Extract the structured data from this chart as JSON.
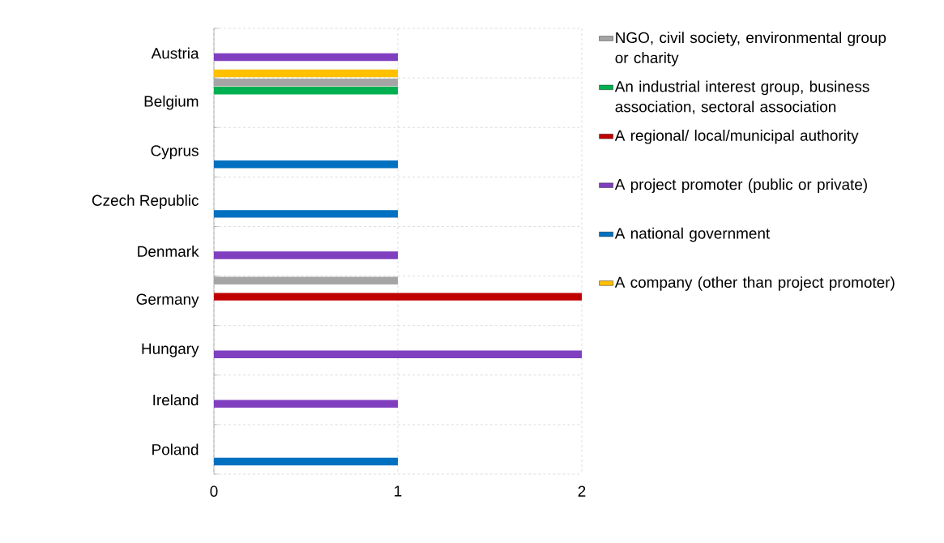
{
  "chart_data": {
    "type": "bar",
    "orientation": "horizontal",
    "categories": [
      "Austria",
      "Belgium",
      "Cyprus",
      "Czech Republic",
      "Denmark",
      "Germany",
      "Hungary",
      "Ireland",
      "Poland"
    ],
    "series": [
      {
        "name": "NGO, civil society, environmental group or charity",
        "color": "#a5a5a5",
        "values": [
          null,
          1,
          null,
          null,
          null,
          1,
          null,
          null,
          null
        ]
      },
      {
        "name": "An industrial interest group, business association, sectoral association",
        "color": "#00b050",
        "values": [
          null,
          1,
          null,
          null,
          null,
          null,
          null,
          null,
          null
        ]
      },
      {
        "name": "A regional/ local/municipal authority",
        "color": "#c00000",
        "values": [
          null,
          null,
          null,
          null,
          null,
          2,
          null,
          null,
          null
        ]
      },
      {
        "name": "A project promoter (public or private)",
        "color": "#7f3fbf",
        "values": [
          1,
          null,
          null,
          null,
          1,
          null,
          2,
          1,
          null
        ]
      },
      {
        "name": "A national government",
        "color": "#0070c0",
        "values": [
          null,
          null,
          1,
          1,
          null,
          null,
          null,
          null,
          1
        ]
      },
      {
        "name": "A company (other than project promoter)",
        "color": "#ffc000",
        "values": [
          1,
          null,
          null,
          null,
          null,
          null,
          null,
          null,
          null
        ]
      }
    ],
    "xlim": [
      0,
      2
    ],
    "xticks": [
      0,
      1,
      2
    ],
    "grid": true,
    "legend": "right"
  }
}
